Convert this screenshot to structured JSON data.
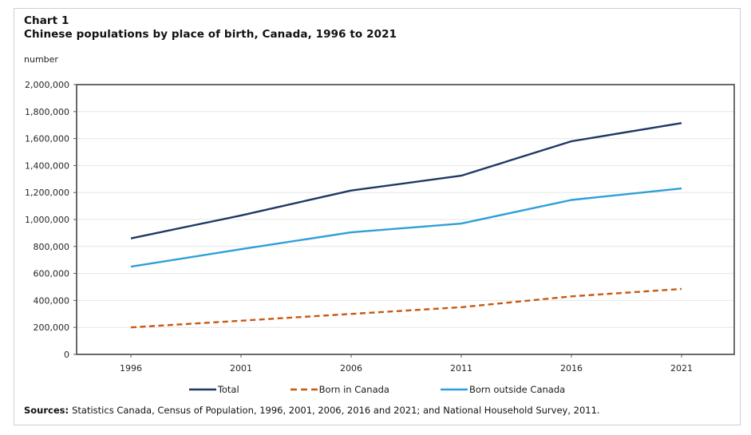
{
  "figure": {
    "label": "Chart 1",
    "title": "Chinese populations by place of birth, Canada, 1996 to 2021",
    "unit_label": "number",
    "sources_label": "Sources:",
    "sources_text": "Statistics Canada, Census of Population, 1996, 2001, 2006, 2016 and 2021; and National Household Survey, 2011."
  },
  "colors": {
    "total_line": "#1f3864",
    "born_in_canada_line": "#c55a11",
    "born_outside_canada_line": "#2e9fda",
    "plot_border": "#595959",
    "gridline": "#e6e6e6",
    "outer_border": "#c8d1da",
    "label_text": "#262626"
  },
  "chart_data": {
    "type": "line",
    "title": "Chinese populations by place of birth, Canada, 1996 to 2021",
    "xlabel": "",
    "ylabel": "number",
    "categories": [
      "1996",
      "2001",
      "2006",
      "2011",
      "2016",
      "2021"
    ],
    "series": [
      {
        "name": "Total",
        "style": "solid",
        "color": "#1f3864",
        "values": [
          860000,
          1030000,
          1215000,
          1325000,
          1580000,
          1715000
        ]
      },
      {
        "name": "Born in Canada",
        "style": "dashed",
        "color": "#c55a11",
        "values": [
          200000,
          250000,
          300000,
          350000,
          430000,
          485000
        ]
      },
      {
        "name": "Born outside Canada",
        "style": "solid",
        "color": "#2e9fda",
        "values": [
          650000,
          780000,
          905000,
          970000,
          1145000,
          1230000
        ]
      }
    ],
    "ylim": [
      0,
      2000000
    ],
    "ytick_step": 200000,
    "grid": true,
    "legend_position": "bottom"
  }
}
